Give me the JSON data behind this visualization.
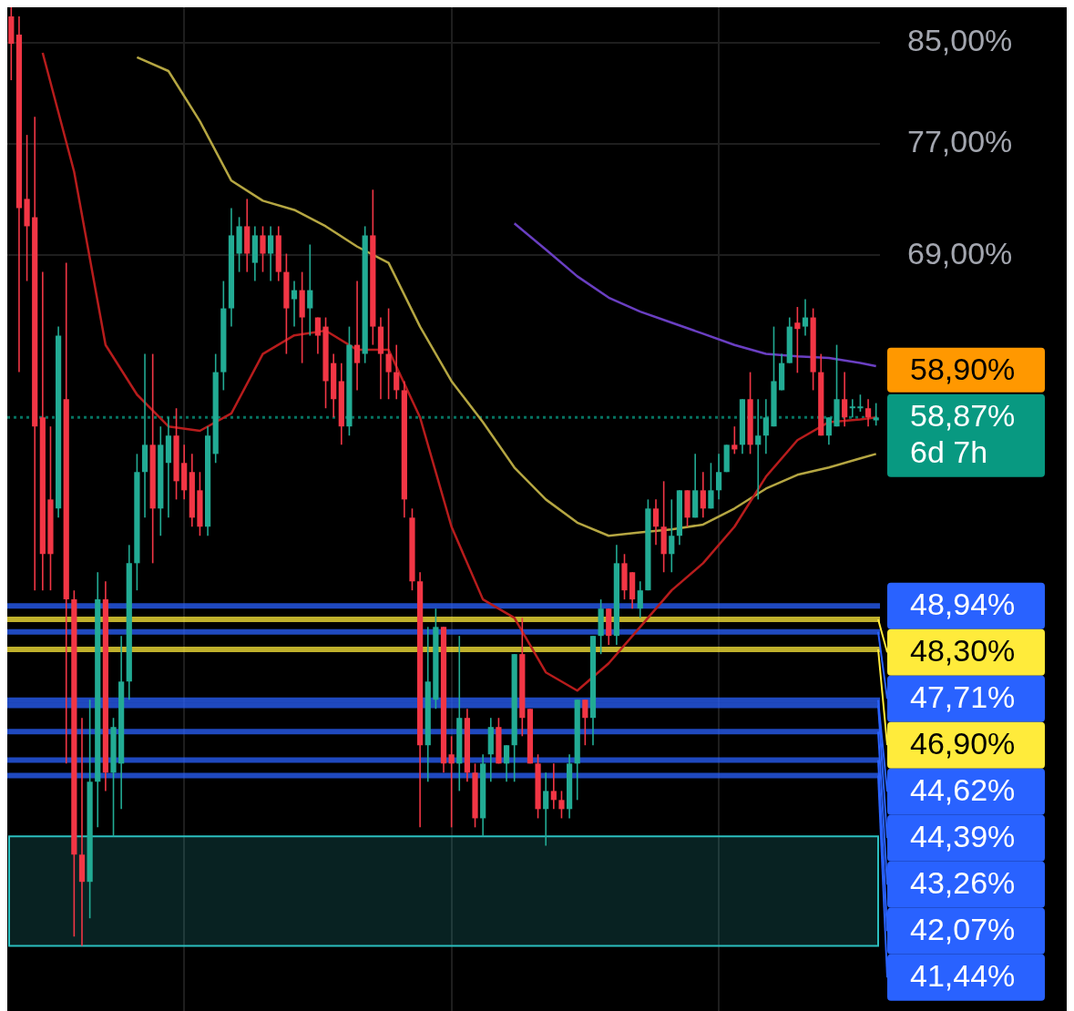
{
  "chart_data": {
    "type": "candlestick",
    "log": true,
    "grid": true,
    "legend": false,
    "tick_labels": "y",
    "ylim": [
      32.9,
      88
    ],
    "yticks": [
      {
        "value": 85,
        "label": "85,00%"
      },
      {
        "value": 77,
        "label": "77,00%"
      },
      {
        "value": 69,
        "label": "69,00%"
      }
    ],
    "categories": [
      null,
      null,
      null,
      null,
      null,
      null,
      null,
      null,
      null,
      null,
      null,
      null,
      null,
      null,
      null,
      null,
      null,
      null,
      null,
      null,
      null,
      null,
      null,
      null,
      null,
      null,
      null,
      null,
      null,
      null,
      null,
      null,
      null,
      null,
      null,
      null,
      null,
      null,
      null,
      null,
      null,
      null,
      null,
      null,
      null,
      null,
      null,
      null,
      null,
      null,
      null,
      null,
      null,
      null,
      null,
      null,
      null,
      null,
      null,
      null,
      null,
      null,
      null,
      null,
      null,
      null,
      null,
      null,
      null,
      null,
      null,
      null,
      null,
      null,
      null,
      null,
      null,
      null,
      null,
      null,
      null,
      null,
      null,
      null,
      null,
      null,
      null,
      null,
      null,
      null,
      null,
      null,
      null,
      null,
      null,
      null,
      null,
      null,
      null,
      null,
      null,
      null,
      null,
      null,
      null,
      null,
      null,
      null,
      null,
      null,
      null
    ],
    "ohlc": [
      [
        87.22,
        88.0,
        81.93,
        84.91
      ],
      [
        85.67,
        87.22,
        61.54,
        72.28
      ],
      [
        72.93,
        77.65,
        67.29,
        71.0
      ],
      [
        71.64,
        79.05,
        49.69,
        58.35
      ],
      [
        58.87,
        67.89,
        49.69,
        51.49
      ],
      [
        54.32,
        58.35,
        49.69,
        51.49
      ],
      [
        53.84,
        64.35,
        53.36,
        63.78
      ],
      [
        59.93,
        68.5,
        41.93,
        49.25
      ],
      [
        49.25,
        49.69,
        35.39,
        38.35
      ],
      [
        38.35,
        43.85,
        35.07,
        37.34
      ],
      [
        37.34,
        44.64,
        36.03,
        41.19
      ],
      [
        41.19,
        50.58,
        39.39,
        49.25
      ],
      [
        49.25,
        50.13,
        40.82,
        41.56
      ],
      [
        41.56,
        43.85,
        39.04,
        43.46
      ],
      [
        41.93,
        47.52,
        40.1,
        45.44
      ],
      [
        45.44,
        51.95,
        44.64,
        51.03
      ],
      [
        51.03,
        56.8,
        49.69,
        55.8
      ],
      [
        55.8,
        62.65,
        53.36,
        57.31
      ],
      [
        57.31,
        62.65,
        51.03,
        53.84
      ],
      [
        53.84,
        58.35,
        52.42,
        57.31
      ],
      [
        56.3,
        58.87,
        53.36,
        57.83
      ],
      [
        57.83,
        59.4,
        54.32,
        55.3
      ],
      [
        56.3,
        57.31,
        54.32,
        54.81
      ],
      [
        55.8,
        56.8,
        52.89,
        53.36
      ],
      [
        54.81,
        55.8,
        52.42,
        52.89
      ],
      [
        52.89,
        58.35,
        52.42,
        57.83
      ],
      [
        56.8,
        62.65,
        56.3,
        61.54
      ],
      [
        61.54,
        67.29,
        60.46,
        65.51
      ],
      [
        65.51,
        72.28,
        64.35,
        70.37
      ],
      [
        69.12,
        71.64,
        67.89,
        71.0
      ],
      [
        71.0,
        72.93,
        67.89,
        69.12
      ],
      [
        68.5,
        71.0,
        67.29,
        70.37
      ],
      [
        70.37,
        71.0,
        67.89,
        69.12
      ],
      [
        69.12,
        71.0,
        67.29,
        70.37
      ],
      [
        70.37,
        71.0,
        67.29,
        67.89
      ],
      [
        67.89,
        69.12,
        62.65,
        65.51
      ],
      [
        66.1,
        67.29,
        64.35,
        66.69
      ],
      [
        66.69,
        67.89,
        62.09,
        64.93
      ],
      [
        65.51,
        69.74,
        63.78,
        66.69
      ],
      [
        64.93,
        64.93,
        62.65,
        63.78
      ],
      [
        64.35,
        64.93,
        59.4,
        61.0
      ],
      [
        62.09,
        62.65,
        58.87,
        59.93
      ],
      [
        61.0,
        62.09,
        57.31,
        58.35
      ],
      [
        58.35,
        64.35,
        57.83,
        63.21
      ],
      [
        63.21,
        67.29,
        60.46,
        62.09
      ],
      [
        62.65,
        71.0,
        62.09,
        70.37
      ],
      [
        70.37,
        73.59,
        63.21,
        64.35
      ],
      [
        64.35,
        64.93,
        59.93,
        62.65
      ],
      [
        62.65,
        65.51,
        59.93,
        61.54
      ],
      [
        61.54,
        63.21,
        59.93,
        60.46
      ],
      [
        60.46,
        61.0,
        53.36,
        54.32
      ],
      [
        53.36,
        53.84,
        49.69,
        50.13
      ],
      [
        50.13,
        50.58,
        39.39,
        42.69
      ],
      [
        42.69,
        47.94,
        41.19,
        45.44
      ],
      [
        44.64,
        48.81,
        44.24,
        47.94
      ],
      [
        47.94,
        47.94,
        41.56,
        41.93
      ],
      [
        42.31,
        43.07,
        39.39,
        41.93
      ],
      [
        41.93,
        47.52,
        40.82,
        43.85
      ],
      [
        43.85,
        44.24,
        41.19,
        41.56
      ],
      [
        41.56,
        41.93,
        39.39,
        39.74
      ],
      [
        39.74,
        42.31,
        39.04,
        41.93
      ],
      [
        42.31,
        43.85,
        41.19,
        43.46
      ],
      [
        43.46,
        43.85,
        41.93,
        41.93
      ],
      [
        41.93,
        42.69,
        41.19,
        42.69
      ],
      [
        42.69,
        46.68,
        41.19,
        46.68
      ],
      [
        46.68,
        48.37,
        43.07,
        43.85
      ],
      [
        44.24,
        44.24,
        41.93,
        41.93
      ],
      [
        41.93,
        42.31,
        39.74,
        40.1
      ],
      [
        40.1,
        41.56,
        38.69,
        40.82
      ],
      [
        40.82,
        41.93,
        40.1,
        40.46
      ],
      [
        40.46,
        40.82,
        39.74,
        40.1
      ],
      [
        40.1,
        42.31,
        39.74,
        41.93
      ],
      [
        41.93,
        44.64,
        40.46,
        44.64
      ],
      [
        44.64,
        44.64,
        42.69,
        43.85
      ],
      [
        43.85,
        47.52,
        42.69,
        47.52
      ],
      [
        47.52,
        49.25,
        46.68,
        48.81
      ],
      [
        48.81,
        48.81,
        47.1,
        47.52
      ],
      [
        47.52,
        51.95,
        47.1,
        51.03
      ],
      [
        51.03,
        51.49,
        49.25,
        49.69
      ],
      [
        50.58,
        50.58,
        48.81,
        49.25
      ],
      [
        48.81,
        50.13,
        48.37,
        49.69
      ],
      [
        49.69,
        54.32,
        49.69,
        53.84
      ],
      [
        53.84,
        54.32,
        51.95,
        52.89
      ],
      [
        52.89,
        55.3,
        50.58,
        51.49
      ],
      [
        51.49,
        54.32,
        50.58,
        52.42
      ],
      [
        52.42,
        54.81,
        51.95,
        54.81
      ],
      [
        54.81,
        54.81,
        52.89,
        53.36
      ],
      [
        53.36,
        56.8,
        53.36,
        54.81
      ],
      [
        54.81,
        55.8,
        53.36,
        53.84
      ],
      [
        53.84,
        56.3,
        53.84,
        54.81
      ],
      [
        54.81,
        56.8,
        54.32,
        55.8
      ],
      [
        55.8,
        57.31,
        55.8,
        57.31
      ],
      [
        57.31,
        58.35,
        56.8,
        57.05
      ],
      [
        57.31,
        59.93,
        56.8,
        59.93
      ],
      [
        59.93,
        61.54,
        56.8,
        57.31
      ],
      [
        57.31,
        59.93,
        54.32,
        57.83
      ],
      [
        57.83,
        59.93,
        56.8,
        58.87
      ],
      [
        58.35,
        64.35,
        58.35,
        61.0
      ],
      [
        60.46,
        62.65,
        60.46,
        62.09
      ],
      [
        62.09,
        64.93,
        62.09,
        64.35
      ],
      [
        64.6,
        65.6,
        61.5,
        64.2
      ],
      [
        64.35,
        66.1,
        63.78,
        64.93
      ],
      [
        64.93,
        65.51,
        60.46,
        61.54
      ],
      [
        61.54,
        62.65,
        57.83,
        57.83
      ],
      [
        57.83,
        58.87,
        57.31,
        58.87
      ],
      [
        58.35,
        63.21,
        58.35,
        59.93
      ],
      [
        59.93,
        61.54,
        58.35,
        58.87
      ],
      [
        59.4,
        59.93,
        58.87,
        59.5
      ],
      [
        59.4,
        60.2,
        59.2,
        59.5
      ],
      [
        59.4,
        59.93,
        58.35,
        58.87
      ],
      [
        58.7,
        59.7,
        58.4,
        58.87
      ]
    ],
    "colors": [
      "#f23645",
      "#f23645",
      "#f23645",
      "#f23645",
      "#f23645",
      "#f23645",
      "#22ab94",
      "#f23645",
      "#f23645",
      "#f23645",
      "#22ab94",
      "#22ab94",
      "#f23645",
      "#22ab94",
      "#22ab94",
      "#22ab94",
      "#22ab94",
      "#22ab94",
      "#f23645",
      "#22ab94",
      "#22ab94",
      "#f23645",
      "#f23645",
      "#f23645",
      "#f23645",
      "#22ab94",
      "#22ab94",
      "#22ab94",
      "#22ab94",
      "#22ab94",
      "#f23645",
      "#22ab94",
      "#f23645",
      "#22ab94",
      "#f23645",
      "#f23645",
      "#22ab94",
      "#f23645",
      "#22ab94",
      "#f23645",
      "#f23645",
      "#f23645",
      "#f23645",
      "#22ab94",
      "#f23645",
      "#22ab94",
      "#f23645",
      "#f23645",
      "#f23645",
      "#f23645",
      "#f23645",
      "#f23645",
      "#f23645",
      "#22ab94",
      "#22ab94",
      "#f23645",
      "#f23645",
      "#22ab94",
      "#f23645",
      "#f23645",
      "#22ab94",
      "#22ab94",
      "#f23645",
      "#22ab94",
      "#22ab94",
      "#f23645",
      "#f23645",
      "#f23645",
      "#22ab94",
      "#f23645",
      "#f23645",
      "#22ab94",
      "#22ab94",
      "#f23645",
      "#22ab94",
      "#22ab94",
      "#f23645",
      "#22ab94",
      "#f23645",
      "#f23645",
      "#22ab94",
      "#22ab94",
      "#f23645",
      "#f23645",
      "#22ab94",
      "#22ab94",
      "#f23645",
      "#22ab94",
      "#f23645",
      "#22ab94",
      "#22ab94",
      "#22ab94",
      "#f23645",
      "#22ab94",
      "#f23645",
      "#22ab94",
      "#22ab94",
      "#22ab94",
      "#22ab94",
      "#22ab94",
      "#f23645",
      "#22ab94",
      "#f23645",
      "#f23645",
      "#22ab94",
      "#22ab94",
      "#f23645",
      "#22ab94",
      "#22ab94",
      "#f23645",
      "#22ab94"
    ],
    "series": [
      {
        "type": "line",
        "color": "#b71c1c",
        "values": [
          null,
          null,
          null,
          null,
          84.16,
          null,
          null,
          null,
          74.9,
          null,
          null,
          null,
          63.2,
          null,
          null,
          null,
          60.2,
          null,
          null,
          null,
          58.35,
          null,
          null,
          null,
          58.1,
          null,
          null,
          null,
          59.1,
          null,
          null,
          null,
          62.65,
          null,
          null,
          null,
          63.8,
          null,
          null,
          null,
          64.1,
          null,
          null,
          null,
          62.9,
          null,
          null,
          null,
          62.9,
          null,
          null,
          null,
          58.87,
          null,
          null,
          null,
          52.89,
          null,
          null,
          null,
          49.25,
          null,
          null,
          null,
          48.37,
          null,
          null,
          null,
          45.85,
          null,
          null,
          null,
          45.04,
          null,
          null,
          null,
          46.26,
          null,
          null,
          null,
          47.94,
          null,
          null,
          null,
          49.69,
          null,
          null,
          null,
          51.03,
          null,
          null,
          null,
          52.89,
          null,
          null,
          null,
          55.55,
          null,
          null,
          null,
          57.57,
          null,
          null,
          null,
          58.6,
          null,
          null,
          null,
          58.75,
          null,
          58.87
        ]
      },
      {
        "type": "line",
        "color": "#b5a642",
        "values": [
          null,
          null,
          null,
          null,
          null,
          null,
          null,
          null,
          null,
          null,
          null,
          null,
          null,
          null,
          null,
          null,
          83.8,
          null,
          null,
          null,
          82.67,
          null,
          null,
          null,
          78.7,
          null,
          null,
          null,
          74.25,
          null,
          null,
          null,
          72.8,
          null,
          null,
          null,
          72.15,
          null,
          null,
          null,
          71.0,
          null,
          null,
          null,
          69.6,
          null,
          null,
          null,
          68.5,
          null,
          null,
          null,
          64.35,
          null,
          null,
          null,
          61.0,
          null,
          null,
          null,
          58.6,
          null,
          null,
          null,
          56.05,
          null,
          null,
          null,
          54.32,
          null,
          null,
          null,
          53.1,
          null,
          null,
          null,
          52.42,
          null,
          null,
          null,
          52.6,
          null,
          null,
          null,
          52.75,
          null,
          null,
          null,
          53.0,
          null,
          null,
          null,
          53.84,
          null,
          null,
          null,
          54.9,
          null,
          null,
          null,
          55.65,
          null,
          null,
          null,
          56.05,
          null,
          null,
          null,
          56.55,
          null,
          56.8
        ]
      },
      {
        "type": "line",
        "color": "#6a3fc2",
        "values": [
          null,
          null,
          null,
          null,
          null,
          null,
          null,
          null,
          null,
          null,
          null,
          null,
          null,
          null,
          null,
          null,
          null,
          null,
          null,
          null,
          null,
          null,
          null,
          null,
          null,
          null,
          null,
          null,
          null,
          null,
          null,
          null,
          null,
          null,
          null,
          null,
          null,
          null,
          null,
          null,
          null,
          null,
          null,
          null,
          null,
          null,
          null,
          null,
          null,
          null,
          null,
          null,
          null,
          null,
          null,
          null,
          null,
          null,
          null,
          null,
          null,
          null,
          null,
          null,
          71.2,
          null,
          null,
          null,
          69.4,
          null,
          null,
          null,
          67.6,
          null,
          null,
          null,
          66.2,
          null,
          null,
          null,
          65.3,
          null,
          null,
          null,
          64.6,
          null,
          null,
          null,
          63.9,
          null,
          null,
          null,
          63.2,
          null,
          null,
          null,
          62.65,
          null,
          null,
          null,
          62.5,
          null,
          null,
          null,
          62.4,
          null,
          null,
          null,
          62.1,
          null,
          61.9
        ]
      }
    ],
    "ref_lines": [
      {
        "axis": "y",
        "value": 58.87,
        "label": "58,87%",
        "color": "#089981",
        "line_style": "dotted"
      },
      {
        "axis": "y",
        "value": 48.94,
        "label": "48,94%",
        "color": "#2962ff"
      },
      {
        "axis": "y",
        "value": 48.3,
        "label": "48,30%",
        "color": "#ffeb3b"
      },
      {
        "axis": "y",
        "value": 47.71,
        "label": "47,71%",
        "color": "#2962ff"
      },
      {
        "axis": "y",
        "value": 46.9,
        "label": "46,90%",
        "color": "#ffeb3b"
      },
      {
        "axis": "y",
        "value": 44.62,
        "label": "44,62%",
        "color": "#2962ff"
      },
      {
        "axis": "y",
        "value": 44.39,
        "label": "44,39%",
        "color": "#2962ff"
      },
      {
        "axis": "y",
        "value": 43.26,
        "label": "43,26%",
        "color": "#2962ff"
      },
      {
        "axis": "y",
        "value": 42.07,
        "label": "42,07%",
        "color": "#2962ff"
      },
      {
        "axis": "y",
        "value": 41.44,
        "label": "41,44%",
        "color": "#2962ff"
      }
    ],
    "bands": [
      {
        "axis": "y",
        "from": 35.07,
        "to": 39.04,
        "color": "#2bbfbf"
      }
    ],
    "annotations": [
      "58,90%",
      "6d 7h"
    ]
  }
}
